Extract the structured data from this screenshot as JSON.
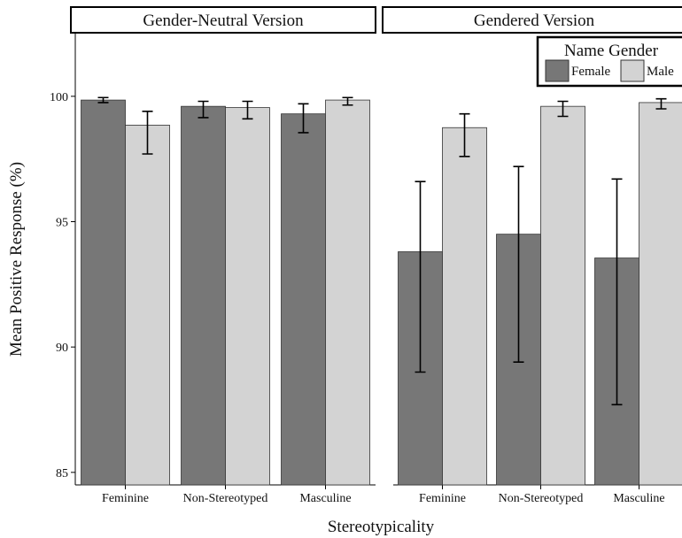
{
  "chart_data": {
    "type": "bar",
    "xlabel": "Stereotypicality",
    "ylabel": "Mean Positive Response (%)",
    "ylim": [
      84.5,
      102.5
    ],
    "yticks": [
      85,
      90,
      95,
      100
    ],
    "categories": [
      "Feminine",
      "Non-Stereotyped",
      "Masculine"
    ],
    "legend": {
      "title": "Name Gender",
      "placement": "top-right",
      "entries": [
        {
          "label": "Female",
          "color": "#777777"
        },
        {
          "label": "Male",
          "color": "#d3d3d3"
        }
      ]
    },
    "panels": [
      {
        "title": "Gender-Neutral Version",
        "series": [
          {
            "name": "Female",
            "color": "#777777",
            "values": [
              99.85,
              99.6,
              99.3
            ],
            "err_low": [
              99.75,
              99.15,
              98.55
            ],
            "err_high": [
              99.95,
              99.8,
              99.7
            ]
          },
          {
            "name": "Male",
            "color": "#d3d3d3",
            "values": [
              98.85,
              99.55,
              99.85
            ],
            "err_low": [
              97.7,
              99.1,
              99.65
            ],
            "err_high": [
              99.4,
              99.8,
              99.95
            ]
          }
        ]
      },
      {
        "title": "Gendered Version",
        "series": [
          {
            "name": "Female",
            "color": "#777777",
            "values": [
              93.8,
              94.5,
              93.55
            ],
            "err_low": [
              89.0,
              89.4,
              87.7
            ],
            "err_high": [
              96.6,
              97.2,
              96.7
            ]
          },
          {
            "name": "Male",
            "color": "#d3d3d3",
            "values": [
              98.75,
              99.6,
              99.75
            ],
            "err_low": [
              97.6,
              99.2,
              99.5
            ],
            "err_high": [
              99.3,
              99.8,
              99.9
            ]
          }
        ]
      }
    ]
  }
}
